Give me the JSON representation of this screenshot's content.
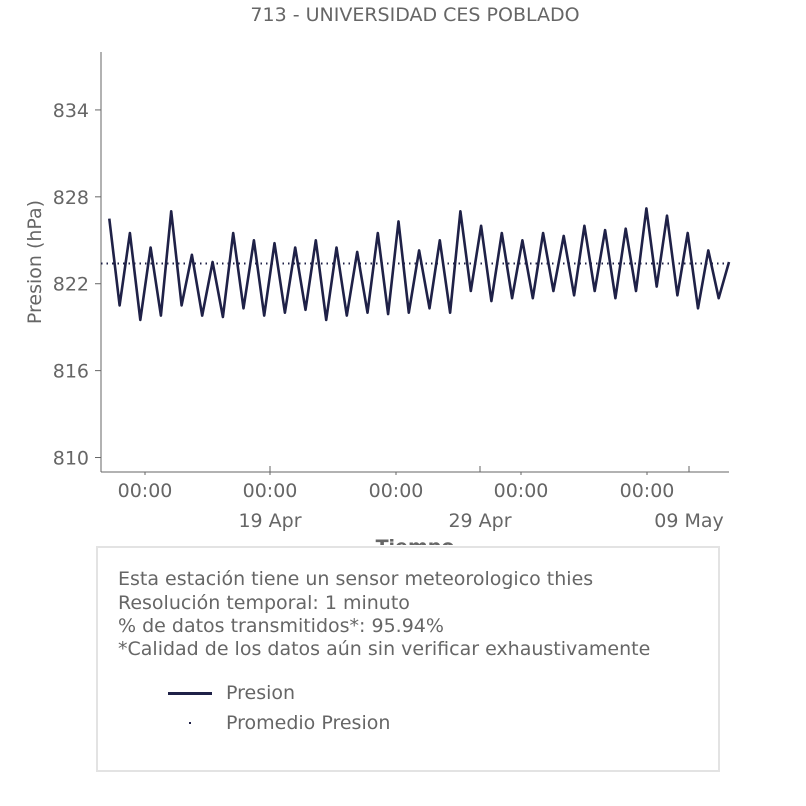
{
  "chart_data": {
    "type": "line",
    "title": "713 - UNIVERSIDAD CES POBLADO",
    "ylabel": "Presion (hPa)",
    "xlabel": "Tiempo",
    "ylim": [
      809,
      838
    ],
    "yticks": [
      810,
      816,
      822,
      828,
      834
    ],
    "x_time_labels": [
      "00:00",
      "00:00",
      "00:00",
      "00:00",
      "00:00"
    ],
    "x_date_labels": [
      "19 Apr",
      "29 Apr",
      "09 May"
    ],
    "x_start": "2024-04-13",
    "x_end": "2024-05-13",
    "series": [
      {
        "name": "Presion",
        "color": "#1f2147",
        "style": "solid",
        "x": [
          "2024-04-13T00:00",
          "2024-04-13T12:00",
          "2024-04-14T00:00",
          "2024-04-14T12:00",
          "2024-04-15T00:00",
          "2024-04-15T12:00",
          "2024-04-16T00:00",
          "2024-04-16T12:00",
          "2024-04-17T00:00",
          "2024-04-17T12:00",
          "2024-04-18T00:00",
          "2024-04-18T12:00",
          "2024-04-19T00:00",
          "2024-04-19T12:00",
          "2024-04-20T00:00",
          "2024-04-20T12:00",
          "2024-04-21T00:00",
          "2024-04-21T12:00",
          "2024-04-22T00:00",
          "2024-04-22T12:00",
          "2024-04-23T00:00",
          "2024-04-23T12:00",
          "2024-04-24T00:00",
          "2024-04-24T12:00",
          "2024-04-25T00:00",
          "2024-04-25T12:00",
          "2024-04-26T00:00",
          "2024-04-26T12:00",
          "2024-04-27T00:00",
          "2024-04-27T12:00",
          "2024-04-28T00:00",
          "2024-04-28T12:00",
          "2024-04-29T00:00",
          "2024-04-29T12:00",
          "2024-04-30T00:00",
          "2024-04-30T12:00",
          "2024-05-01T00:00",
          "2024-05-01T12:00",
          "2024-05-02T00:00",
          "2024-05-02T12:00",
          "2024-05-03T00:00",
          "2024-05-03T12:00",
          "2024-05-04T00:00",
          "2024-05-04T12:00",
          "2024-05-05T00:00",
          "2024-05-05T12:00",
          "2024-05-06T00:00",
          "2024-05-06T12:00",
          "2024-05-07T00:00",
          "2024-05-07T12:00",
          "2024-05-08T00:00",
          "2024-05-08T12:00",
          "2024-05-09T00:00",
          "2024-05-09T12:00",
          "2024-05-10T00:00",
          "2024-05-10T12:00",
          "2024-05-11T00:00",
          "2024-05-11T12:00",
          "2024-05-12T00:00",
          "2024-05-12T12:00",
          "2024-05-13T00:00"
        ],
        "values": [
          826.5,
          820.5,
          825.5,
          819.5,
          824.5,
          819.8,
          827,
          820.5,
          824,
          819.8,
          823.5,
          819.7,
          825.5,
          820.3,
          825,
          819.8,
          824.8,
          820,
          824.5,
          820.2,
          825,
          819.5,
          824.5,
          819.8,
          824.2,
          820,
          825.5,
          819.9,
          826.3,
          820,
          824.3,
          820.3,
          825,
          820,
          827,
          821.5,
          826,
          820.8,
          825.5,
          821,
          825,
          821,
          825.5,
          821.5,
          825.3,
          821.2,
          826,
          821.5,
          825.7,
          821,
          825.8,
          821.5,
          827.2,
          821.8,
          826.7,
          821.2,
          825.5,
          820.3,
          824.3,
          821,
          823.5
        ]
      },
      {
        "name": "Promedio Presion",
        "color": "#1f2147",
        "style": "dotted",
        "value": 823.4
      }
    ],
    "grid": false,
    "legend_placement": "bottom-box"
  },
  "info": {
    "line1": "Esta estación tiene un sensor meteorologico thies",
    "line2": "Resolución temporal: 1 minuto",
    "line3": "% de datos transmitidos*: 95.94%",
    "line4": "*Calidad de los datos aún sin verificar exhaustivamente"
  },
  "legend": {
    "presion": "Presion",
    "promedio": "Promedio Presion"
  }
}
